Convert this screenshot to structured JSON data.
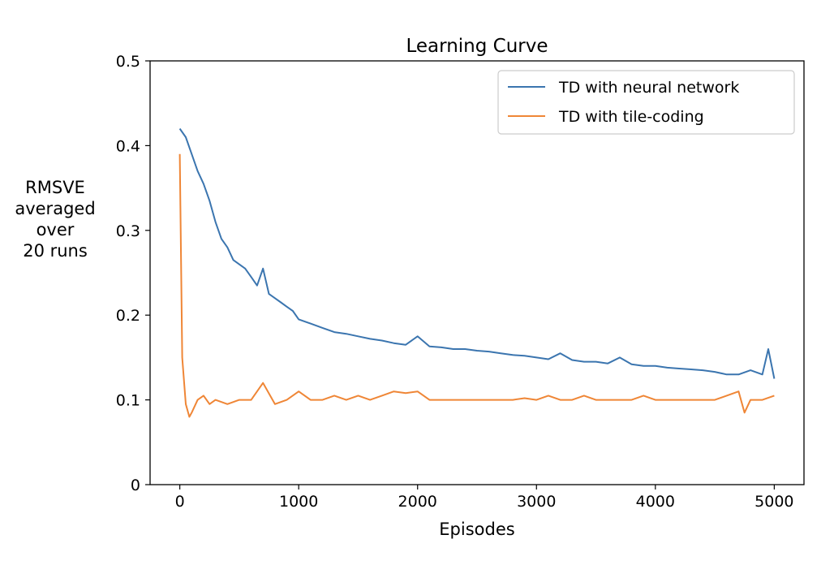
{
  "chart_data": {
    "type": "line",
    "title": "Learning Curve",
    "xlabel": "Episodes",
    "ylabel": "RMSVE averaged over 20 runs",
    "ylabel_lines": [
      "RMSVE",
      "averaged",
      "over",
      "20 runs"
    ],
    "xlim": [
      -250,
      5250
    ],
    "ylim": [
      0,
      0.5
    ],
    "x_ticks": [
      0,
      1000,
      2000,
      3000,
      4000,
      5000
    ],
    "x_tick_labels": [
      "0",
      "1000",
      "2000",
      "3000",
      "4000",
      "5000"
    ],
    "y_ticks": [
      0,
      0.1,
      0.2,
      0.3,
      0.4,
      0.5
    ],
    "y_tick_labels": [
      "0",
      "0.1",
      "0.2",
      "0.3",
      "0.4",
      "0.5"
    ],
    "grid": false,
    "legend_position": "top-right",
    "series": [
      {
        "name": "TD with neural network",
        "color": "#3b75af",
        "x": [
          0,
          50,
          100,
          150,
          200,
          250,
          300,
          350,
          400,
          450,
          500,
          550,
          600,
          650,
          700,
          750,
          800,
          850,
          900,
          950,
          1000,
          1100,
          1200,
          1300,
          1400,
          1500,
          1600,
          1700,
          1800,
          1900,
          2000,
          2100,
          2200,
          2300,
          2400,
          2500,
          2600,
          2700,
          2800,
          2900,
          3000,
          3100,
          3200,
          3300,
          3400,
          3500,
          3600,
          3700,
          3800,
          3900,
          4000,
          4100,
          4200,
          4300,
          4400,
          4500,
          4600,
          4700,
          4800,
          4900,
          4950,
          5000
        ],
        "values": [
          0.42,
          0.41,
          0.39,
          0.37,
          0.355,
          0.335,
          0.31,
          0.29,
          0.28,
          0.265,
          0.26,
          0.255,
          0.245,
          0.235,
          0.255,
          0.225,
          0.22,
          0.215,
          0.21,
          0.205,
          0.195,
          0.19,
          0.185,
          0.18,
          0.178,
          0.175,
          0.172,
          0.17,
          0.167,
          0.165,
          0.175,
          0.163,
          0.162,
          0.16,
          0.16,
          0.158,
          0.157,
          0.155,
          0.153,
          0.152,
          0.15,
          0.148,
          0.155,
          0.147,
          0.145,
          0.145,
          0.143,
          0.15,
          0.142,
          0.14,
          0.14,
          0.138,
          0.137,
          0.136,
          0.135,
          0.133,
          0.13,
          0.13,
          0.135,
          0.13,
          0.16,
          0.125
        ]
      },
      {
        "name": "TD with tile-coding",
        "color": "#ef8636",
        "x": [
          0,
          20,
          50,
          80,
          100,
          150,
          200,
          250,
          300,
          400,
          500,
          600,
          700,
          800,
          900,
          1000,
          1100,
          1200,
          1300,
          1400,
          1500,
          1600,
          1700,
          1800,
          1900,
          2000,
          2100,
          2200,
          2300,
          2400,
          2500,
          2600,
          2700,
          2800,
          2900,
          3000,
          3100,
          3200,
          3300,
          3400,
          3500,
          3600,
          3700,
          3800,
          3900,
          4000,
          4100,
          4200,
          4300,
          4400,
          4500,
          4600,
          4700,
          4750,
          4800,
          4900,
          5000
        ],
        "values": [
          0.39,
          0.15,
          0.095,
          0.08,
          0.085,
          0.1,
          0.105,
          0.095,
          0.1,
          0.095,
          0.1,
          0.1,
          0.12,
          0.095,
          0.1,
          0.11,
          0.1,
          0.1,
          0.105,
          0.1,
          0.105,
          0.1,
          0.105,
          0.11,
          0.108,
          0.11,
          0.1,
          0.1,
          0.1,
          0.1,
          0.1,
          0.1,
          0.1,
          0.1,
          0.102,
          0.1,
          0.105,
          0.1,
          0.1,
          0.105,
          0.1,
          0.1,
          0.1,
          0.1,
          0.105,
          0.1,
          0.1,
          0.1,
          0.1,
          0.1,
          0.1,
          0.105,
          0.11,
          0.085,
          0.1,
          0.1,
          0.105
        ]
      }
    ]
  }
}
